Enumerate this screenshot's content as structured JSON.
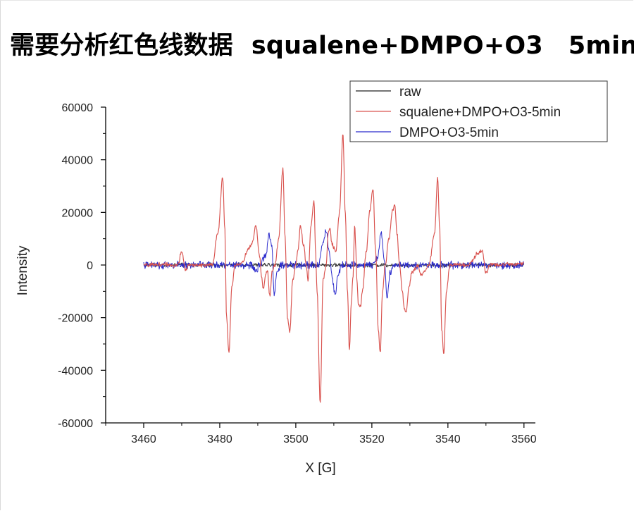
{
  "page": {
    "title_cn": "需要分析红色线数据",
    "title_sample": "squalene+DMPO+O3",
    "title_time": "5min"
  },
  "chart_data": {
    "type": "line",
    "xlabel": "X [G]",
    "ylabel": "Intensity",
    "xlim": [
      3450,
      3563
    ],
    "ylim": [
      -60000,
      60000
    ],
    "x_ticks": [
      3460,
      3480,
      3500,
      3520,
      3540,
      3560
    ],
    "y_ticks": [
      -60000,
      -40000,
      -20000,
      0,
      20000,
      40000,
      60000
    ],
    "legend_position": "top-right",
    "grid": false,
    "series": [
      {
        "name": "raw",
        "color": "#202020",
        "noise_amplitude": 900,
        "points": []
      },
      {
        "name": "squalene+DMPO+O3-5min",
        "color": "#d9534f",
        "noise_amplitude": 900,
        "points": [
          [
            3460,
            0
          ],
          [
            3466,
            300
          ],
          [
            3468,
            -200
          ],
          [
            3469,
            300
          ],
          [
            3470,
            5000
          ],
          [
            3471,
            -2000
          ],
          [
            3472,
            0
          ],
          [
            3478,
            0
          ],
          [
            3479.5,
            12000
          ],
          [
            3480.8,
            33500
          ],
          [
            3481.3,
            15000
          ],
          [
            3481.8,
            -20000
          ],
          [
            3482.4,
            -33500
          ],
          [
            3483.2,
            -8000
          ],
          [
            3484,
            0
          ],
          [
            3486,
            1000
          ],
          [
            3487.5,
            6000
          ],
          [
            3488.5,
            8000
          ],
          [
            3489.5,
            15000
          ],
          [
            3490.5,
            3000
          ],
          [
            3491,
            -5000
          ],
          [
            3491.5,
            -9000
          ],
          [
            3492,
            -4000
          ],
          [
            3492.5,
            -2000
          ],
          [
            3493.2,
            -12000
          ],
          [
            3493.8,
            -2000
          ],
          [
            3494.5,
            0
          ],
          [
            3495.5,
            10000
          ],
          [
            3496.6,
            36500
          ],
          [
            3497.2,
            10000
          ],
          [
            3497.8,
            -20000
          ],
          [
            3498.4,
            -25500
          ],
          [
            3499.2,
            -6000
          ],
          [
            3500,
            0
          ],
          [
            3500.6,
            6000
          ],
          [
            3501.2,
            15000
          ],
          [
            3502,
            8000
          ],
          [
            3502.8,
            -1000
          ],
          [
            3503.2,
            -6000
          ],
          [
            3504,
            15000
          ],
          [
            3504.8,
            24000
          ],
          [
            3505.2,
            5000
          ],
          [
            3505.6,
            -10000
          ],
          [
            3506.4,
            -52000
          ],
          [
            3507.2,
            -5000
          ],
          [
            3508,
            0
          ],
          [
            3508.5,
            12000
          ],
          [
            3509,
            14000
          ],
          [
            3509.5,
            8000
          ],
          [
            3510.5,
            5000
          ],
          [
            3511.5,
            20000
          ],
          [
            3512.4,
            49500
          ],
          [
            3513,
            20000
          ],
          [
            3513.6,
            -10000
          ],
          [
            3514.1,
            -32500
          ],
          [
            3514.6,
            -14000
          ],
          [
            3515,
            -5000
          ],
          [
            3515.5,
            15000
          ],
          [
            3515.8,
            5000
          ],
          [
            3516,
            -5000
          ],
          [
            3516.5,
            -15000
          ],
          [
            3517,
            -16000
          ],
          [
            3517.5,
            -10000
          ],
          [
            3518.5,
            5000
          ],
          [
            3519.5,
            21000
          ],
          [
            3520.3,
            29000
          ],
          [
            3521,
            5000
          ],
          [
            3521.7,
            -25000
          ],
          [
            3522.2,
            -33500
          ],
          [
            3522.8,
            -10000
          ],
          [
            3523.5,
            0
          ],
          [
            3524.5,
            10000
          ],
          [
            3525.5,
            21000
          ],
          [
            3526,
            23500
          ],
          [
            3526.6,
            12000
          ],
          [
            3527.3,
            0
          ],
          [
            3528,
            -10000
          ],
          [
            3528.5,
            -16000
          ],
          [
            3529,
            -18000
          ],
          [
            3529.8,
            -8000
          ],
          [
            3530.5,
            -3000
          ],
          [
            3532,
            0
          ],
          [
            3533,
            -4000
          ],
          [
            3534,
            -2000
          ],
          [
            3535,
            0
          ],
          [
            3536.5,
            12000
          ],
          [
            3537.3,
            33500
          ],
          [
            3537.8,
            15000
          ],
          [
            3538.4,
            -25000
          ],
          [
            3538.9,
            -34000
          ],
          [
            3539.6,
            -10000
          ],
          [
            3540.5,
            0
          ],
          [
            3545,
            0
          ],
          [
            3548.5,
            5000
          ],
          [
            3549,
            5500
          ],
          [
            3550,
            -3000
          ],
          [
            3551,
            0
          ],
          [
            3560,
            500
          ]
        ]
      },
      {
        "name": "DMPO+O3-5min",
        "color": "#2b2bcc",
        "noise_amplitude": 1700,
        "points": [
          [
            3460,
            0
          ],
          [
            3488,
            0
          ],
          [
            3489.5,
            -2000
          ],
          [
            3490.5,
            0
          ],
          [
            3492,
            3000
          ],
          [
            3493,
            12000
          ],
          [
            3493.7,
            6000
          ],
          [
            3494.3,
            -11000
          ],
          [
            3495,
            -3000
          ],
          [
            3496,
            0
          ],
          [
            3506,
            0
          ],
          [
            3507,
            8000
          ],
          [
            3508,
            13000
          ],
          [
            3508.7,
            6000
          ],
          [
            3509.5,
            -4000
          ],
          [
            3510.4,
            -12000
          ],
          [
            3511,
            -4000
          ],
          [
            3512,
            0
          ],
          [
            3520,
            0
          ],
          [
            3521.5,
            3000
          ],
          [
            3522.5,
            12500
          ],
          [
            3523.2,
            3000
          ],
          [
            3524,
            -12000
          ],
          [
            3524.8,
            -3000
          ],
          [
            3525.5,
            0
          ],
          [
            3560,
            0
          ]
        ]
      }
    ]
  }
}
